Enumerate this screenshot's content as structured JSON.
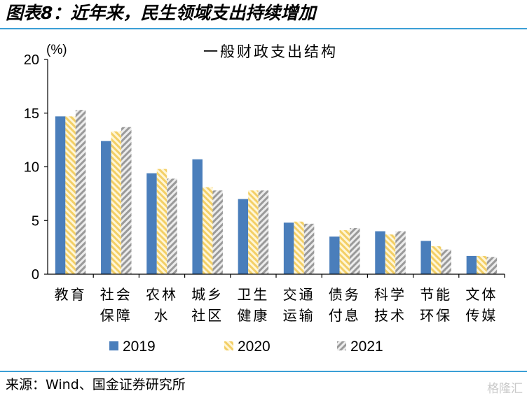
{
  "header": {
    "title": "图表8：近年来，民生领域支出持续增加"
  },
  "footer": {
    "source": "来源：Wind、国金证券研究所",
    "watermark": "格隆汇"
  },
  "chart_data": {
    "type": "bar",
    "title": "一般财政支出结构",
    "ylabel": "(%)",
    "xlabel": "",
    "ylim": [
      0,
      20
    ],
    "yticks": [
      0,
      5,
      10,
      15,
      20
    ],
    "categories": [
      [
        "教育"
      ],
      [
        "社会",
        "保障"
      ],
      [
        "农林",
        "水"
      ],
      [
        "城乡",
        "社区"
      ],
      [
        "卫生",
        "健康"
      ],
      [
        "交通",
        "运输"
      ],
      [
        "债务",
        "付息"
      ],
      [
        "科学",
        "技术"
      ],
      [
        "节能",
        "环保"
      ],
      [
        "文体",
        "传媒"
      ]
    ],
    "series": [
      {
        "name": "2019",
        "color": "#4a7ebb",
        "pattern": "solid",
        "values": [
          14.7,
          12.4,
          9.4,
          10.7,
          7.0,
          4.8,
          3.5,
          4.0,
          3.1,
          1.7
        ]
      },
      {
        "name": "2020",
        "color": "#f5d77a",
        "pattern": "hatch",
        "values": [
          14.7,
          13.3,
          9.8,
          8.1,
          7.8,
          4.9,
          4.1,
          3.7,
          2.6,
          1.7
        ]
      },
      {
        "name": "2021",
        "color": "#a9a9a9",
        "pattern": "hatch",
        "values": [
          15.3,
          13.7,
          8.9,
          7.8,
          7.8,
          4.7,
          4.3,
          4.0,
          2.3,
          1.6
        ]
      }
    ],
    "legend_position": "bottom"
  }
}
